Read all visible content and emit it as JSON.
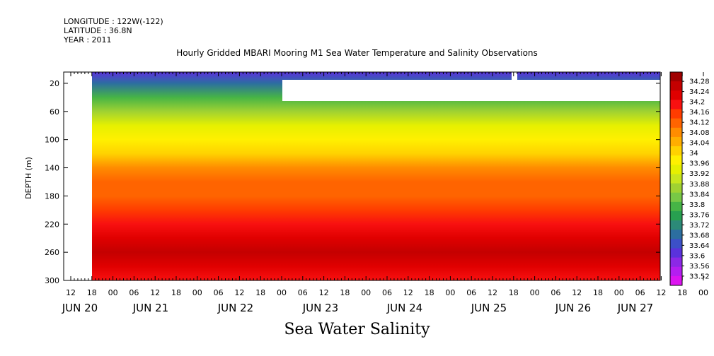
{
  "header": {
    "longitude": "LONGITUDE : 122W(-122)",
    "latitude": "LATITUDE : 36.8N",
    "year": "YEAR : 2011"
  },
  "chart_data": {
    "type": "heatmap",
    "title": "Hourly Gridded MBARI Mooring M1 Sea Water Temperature and Salinity Observations",
    "xlabel": "Sea Water Salinity",
    "ylabel": "DEPTH (m)",
    "ylim": [
      300,
      4
    ],
    "y_ticks": [
      20,
      60,
      100,
      140,
      180,
      220,
      260,
      300
    ],
    "x_hour_ticks": [
      "12",
      "18",
      "00",
      "06",
      "12",
      "18",
      "00",
      "06",
      "12",
      "18",
      "00",
      "06",
      "12",
      "18",
      "00",
      "06",
      "12",
      "18",
      "00",
      "06",
      "12",
      "18",
      "00",
      "06",
      "12",
      "18",
      "00",
      "06",
      "12",
      "18",
      "00",
      "06"
    ],
    "x_day_labels": [
      "JUN 20",
      "JUN 21",
      "JUN 22",
      "JUN 23",
      "JUN 24",
      "JUN 25",
      "JUN 26",
      "JUN 27"
    ],
    "colorbar_levels": [
      "34.28",
      "34.24",
      "34.2",
      "34.16",
      "34.12",
      "34.08",
      "34.04",
      "34",
      "33.96",
      "33.92",
      "33.88",
      "33.84",
      "33.8",
      "33.76",
      "33.72",
      "33.68",
      "33.64",
      "33.6",
      "33.56",
      "33.52"
    ],
    "colorbar_colors": [
      "#a00000",
      "#c40000",
      "#e00000",
      "#f81010",
      "#ff3c00",
      "#ff6400",
      "#ff8c00",
      "#ffae00",
      "#ffd200",
      "#fff000",
      "#e6f000",
      "#c8e61e",
      "#a0d232",
      "#78c846",
      "#46b446",
      "#28a050",
      "#2c8a78",
      "#2c6ea0",
      "#3c50c8",
      "#5a32dc",
      "#8c28e6",
      "#b41ef0",
      "#dc14f0"
    ],
    "depth_profile": [
      {
        "depth": 4,
        "value": 33.64
      },
      {
        "depth": 20,
        "value": 33.7
      },
      {
        "depth": 40,
        "value": 33.78
      },
      {
        "depth": 60,
        "value": 33.86
      },
      {
        "depth": 80,
        "value": 33.93
      },
      {
        "depth": 100,
        "value": 33.98
      },
      {
        "depth": 120,
        "value": 34.01
      },
      {
        "depth": 140,
        "value": 34.07
      },
      {
        "depth": 160,
        "value": 34.11
      },
      {
        "depth": 180,
        "value": 34.1
      },
      {
        "depth": 200,
        "value": 34.13
      },
      {
        "depth": 220,
        "value": 34.17
      },
      {
        "depth": 240,
        "value": 34.2
      },
      {
        "depth": 260,
        "value": 34.25
      },
      {
        "depth": 280,
        "value": 34.21
      },
      {
        "depth": 300,
        "value": 34.16
      }
    ],
    "grid": false,
    "legend": "colorbar-right"
  }
}
